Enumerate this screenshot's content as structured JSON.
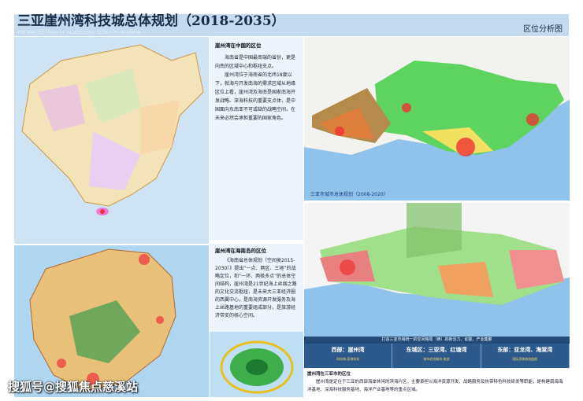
{
  "header": {
    "title": "三亚崖州湾科技城总体规划（2018-2035）",
    "subtitle": "THE MASTER PLAN OF YAZHOUWAN TECH CITY IN SANYA",
    "section": "区位分析图"
  },
  "panel_china": {
    "heading": "崖州湾在中国的区位",
    "paragraphs": [
      "海南省是中国最南端的省份，更是向南的区域中心和枢纽支点。",
      "崖州湾位于海南省的北纬18度以下，就海与开发南海的需求区域从地缘区位上看，崖州湾及海南是国家南海开发战略、深海科技的重要支点体，是中国面向东南亚不可或缺的战略空间，在未来必然会承担重要的国家角色。"
    ]
  },
  "panel_hainan": {
    "heading": "崖州湾在海南岛的区位",
    "paragraphs": [
      "《海南省总体规划（空间类2015-2030）》提出“一点、两区、三地”的战略定位，和“一环、两极多点”的总体空间结构，崖州湾是21世纪海上丝绸之路的文化交流枢纽，是未来大三亚经济圈的西翼中心，是南海资源开发服务及海上丝路基地的重要组成部分，是旅游经济带支的核心空间。"
    ]
  },
  "map_sanya": {
    "caption": "三亚市城市总体规划（2008-2020）"
  },
  "table": {
    "banner": "打造三亚市域统一的空间格局（西）的新活力、动能、产业集聚",
    "columns": [
      {
        "title": "西部：崖州湾",
        "note": "科技城·深海科技"
      },
      {
        "title": "东城区：三亚湾、红塘湾",
        "note": "城市综合服务·旅游"
      },
      {
        "title": "东部：亚龙湾、海棠湾",
        "note": "国际滨海旅游度假"
      }
    ]
  },
  "panel_sanya": {
    "heading": "崖州湾在三亚市的区位",
    "paragraph": "崖州湾是定位于三亚的西部海岸休闲的滨海片区，主要承担以海洋资源开发、战略服务及热带特色科技研发等职能，是构建南海海洋基地、深海科技服务基地、海洋产业基地等的重点区域。"
  },
  "watermark": "搜狐号@搜狐焦点慈溪站",
  "colors": {
    "header": "#c5d9ef",
    "sea": "#8fc3ec",
    "green": "#5fd35f",
    "table": "#2c5a8c"
  }
}
